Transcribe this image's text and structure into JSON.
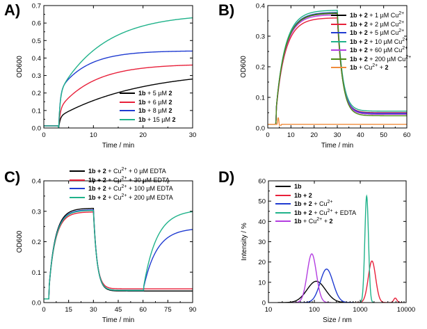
{
  "colors": {
    "black": "#000000",
    "red": "#e8203a",
    "blue": "#1f3bd1",
    "green": "#1fb28a",
    "purple": "#b33de0",
    "olive": "#4c8a12",
    "orange": "#f08c3c"
  },
  "chart_data": [
    {
      "id": "A",
      "type": "line",
      "panel_label": "A)",
      "xlabel": "Time / min",
      "ylabel": "OD600",
      "xlim": [
        0,
        30
      ],
      "ylim": [
        0,
        0.7
      ],
      "xticks": [
        0,
        10,
        20,
        30
      ],
      "yticks": [
        0.0,
        0.1,
        0.2,
        0.3,
        0.4,
        0.5,
        0.6,
        0.7
      ],
      "legend_position": "bottom-right",
      "series": [
        {
          "name": "1b + 5 µM 2",
          "bold": "1b",
          "mid": " + 5 µM ",
          "bold2": "2",
          "color": "black",
          "model": "growthA",
          "onset": 3,
          "jump": 0.065,
          "final": 0.28,
          "rate": 0.06
        },
        {
          "name": "1b + 6 µM 2",
          "bold": "1b",
          "mid": " + 6 µM ",
          "bold2": "2",
          "color": "red",
          "model": "growthA",
          "onset": 3,
          "jump": 0.11,
          "final": 0.36,
          "rate": 0.14
        },
        {
          "name": "1b + 8 µM 2",
          "bold": "1b",
          "mid": " + 8 µM ",
          "bold2": "2",
          "color": "blue",
          "model": "growthA",
          "onset": 3,
          "jump": 0.21,
          "final": 0.44,
          "rate": 0.18
        },
        {
          "name": "1b + 15 µM 2",
          "bold": "1b",
          "mid": " + 15 µM ",
          "bold2": "2",
          "color": "green",
          "model": "growthA",
          "onset": 3,
          "jump": 0.2,
          "final": 0.63,
          "rate": 0.11
        }
      ]
    },
    {
      "id": "B",
      "type": "line",
      "panel_label": "B)",
      "xlabel": "Time / min",
      "ylabel": "OD600",
      "xlim": [
        0,
        60
      ],
      "ylim": [
        0,
        0.4
      ],
      "xticks": [
        0,
        10,
        20,
        30,
        40,
        50,
        60
      ],
      "yticks": [
        0.0,
        0.1,
        0.2,
        0.3,
        0.4
      ],
      "legend_position": "top-right",
      "series": [
        {
          "name": "1b + 2 + 1 µM Cu2+",
          "bold": "1b + 2",
          "mid": " + 1 µM Cu",
          "sup": "2+",
          "color": "black",
          "model": "riseFall",
          "onset": 3.5,
          "plateau": 0.375,
          "drop_at": 30,
          "final": 0.045
        },
        {
          "name": "1b + 2 + 2 µM Cu2+",
          "bold": "1b + 2",
          "mid": " + 2 µM Cu",
          "sup": "2+",
          "color": "red",
          "model": "riseFall",
          "onset": 3.5,
          "plateau": 0.36,
          "drop_at": 30,
          "final": 0.05
        },
        {
          "name": "1b + 2 + 5 µM Cu2+",
          "bold": "1b + 2",
          "mid": " + 5 µM Cu",
          "sup": "2+",
          "color": "blue",
          "model": "riseFall",
          "onset": 3.5,
          "plateau": 0.378,
          "drop_at": 30,
          "final": 0.048
        },
        {
          "name": "1b + 2 + 10 µM Cu2+",
          "bold": "1b + 2",
          "mid": " + 10 µM Cu",
          "sup": "2+",
          "color": "green",
          "model": "riseFall",
          "onset": 3.5,
          "plateau": 0.385,
          "drop_at": 30,
          "final": 0.055
        },
        {
          "name": "1b + 2 + 60 µM Cu2+",
          "bold": "1b + 2",
          "mid": " + 60 µM Cu",
          "sup": "2+",
          "color": "purple",
          "model": "riseFall",
          "onset": 3.5,
          "plateau": 0.37,
          "drop_at": 30,
          "final": 0.045
        },
        {
          "name": "1b + 2 + 200 µM Cu2+",
          "bold": "1b + 2",
          "mid": " + 200 µM Cu",
          "sup": "2+",
          "color": "olive",
          "model": "riseFall",
          "onset": 3.5,
          "plateau": 0.376,
          "drop_at": 30,
          "final": 0.04
        },
        {
          "name": "1b + Cu2+ + 2",
          "bold": "1b",
          "mid": " + Cu",
          "sup": "2+",
          "tail": " + ",
          "bold2": "2",
          "color": "orange",
          "model": "flat",
          "level": 0.012,
          "spike_at": 4.5,
          "spike": 0.038
        }
      ]
    },
    {
      "id": "C",
      "type": "line",
      "panel_label": "C)",
      "xlabel": "Time / min",
      "ylabel": "OD600",
      "xlim": [
        0,
        90
      ],
      "ylim": [
        0,
        0.4
      ],
      "xticks": [
        0,
        15,
        30,
        45,
        60,
        75,
        90
      ],
      "yticks": [
        0.0,
        0.1,
        0.2,
        0.3,
        0.4
      ],
      "legend_position": "top-right",
      "series": [
        {
          "name": "1b + 2 + Cu2+ + 0 µM EDTA",
          "bold": "1b + 2",
          "mid": " + Cu",
          "sup": "2+",
          "tail": " + 0 µM EDTA",
          "color": "black",
          "model": "riseFallRise",
          "onset": 3,
          "plateau": 0.31,
          "drop_at": 30,
          "final": 0.038,
          "recover_at": 60,
          "recovered": 0.038
        },
        {
          "name": "1b + 2 + Cu2+ + 30 µM EDTA",
          "bold": "1b + 2",
          "mid": " + Cu",
          "sup": "2+",
          "tail": " + 30 µM EDTA",
          "color": "red",
          "model": "riseFallRise",
          "onset": 3,
          "plateau": 0.298,
          "drop_at": 30,
          "final": 0.045,
          "recover_at": 60,
          "recovered": 0.045
        },
        {
          "name": "1b + 2 + Cu2+ + 100 µM EDTA",
          "bold": "1b + 2",
          "mid": " + Cu",
          "sup": "2+",
          "tail": " + 100 µM EDTA",
          "color": "blue",
          "model": "riseFallRise",
          "onset": 3,
          "plateau": 0.305,
          "drop_at": 30,
          "final": 0.04,
          "recover_at": 60,
          "recovered": 0.245
        },
        {
          "name": "1b + 2 + Cu2+ + 200 µM EDTA",
          "bold": "1b + 2",
          "mid": " + Cu",
          "sup": "2+",
          "tail": " + 200 µM EDTA",
          "color": "green",
          "model": "riseFallRise",
          "onset": 3,
          "plateau": 0.303,
          "drop_at": 30,
          "final": 0.04,
          "recover_at": 60,
          "recovered": 0.305
        }
      ]
    },
    {
      "id": "D",
      "type": "line",
      "xscale": "log",
      "panel_label": "D)",
      "xlabel": "Size / nm",
      "ylabel": "Intensity / %",
      "xlim": [
        10,
        10000
      ],
      "ylim": [
        0,
        60
      ],
      "xticks": [
        10,
        100,
        1000,
        10000
      ],
      "yticks": [
        0,
        10,
        20,
        30,
        40,
        50,
        60
      ],
      "legend_position": "top-left",
      "series": [
        {
          "name": "1b",
          "bold": "1b",
          "color": "black",
          "model": "peaks",
          "peaks": [
            [
              110,
              10.5,
              0.2
            ]
          ]
        },
        {
          "name": "1b + 2",
          "bold": "1b + 2",
          "color": "red",
          "model": "peaks",
          "peaks": [
            [
              1800,
              20.5,
              0.08
            ],
            [
              5800,
              2.2,
              0.035
            ]
          ]
        },
        {
          "name": "1b + 2 + Cu2+",
          "bold": "1b + 2",
          "mid": " + Cu",
          "sup": "2+",
          "color": "blue",
          "model": "peaks",
          "peaks": [
            [
              185,
              16.5,
              0.14
            ]
          ]
        },
        {
          "name": "1b + 2 + Cu2+ + EDTA",
          "bold": "1b + 2",
          "mid": " + Cu",
          "sup": "2+",
          "tail": " + EDTA",
          "color": "green",
          "model": "peaks",
          "peaks": [
            [
              1380,
              52.5,
              0.04
            ]
          ]
        },
        {
          "name": "1b + Cu2+ + 2",
          "bold": "1b",
          "mid": " + Cu",
          "sup": "2+",
          "tail": " + ",
          "bold2": "2",
          "color": "purple",
          "model": "peaks",
          "peaks": [
            [
              88,
              24,
              0.1
            ]
          ]
        }
      ]
    }
  ]
}
